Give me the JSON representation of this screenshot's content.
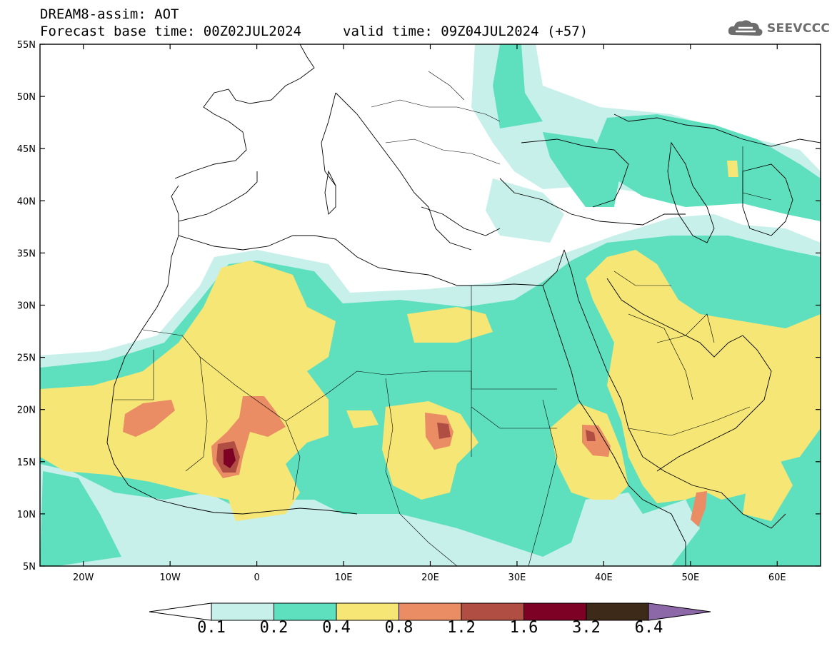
{
  "title": {
    "model": "DREAM8-assim: AOT",
    "base_time": "Forecast base time: 00Z02JUL2024",
    "valid_time": "valid time: 09Z04JUL2024 (+57)"
  },
  "logo": {
    "text": "SEEVCCC",
    "icon": "cloud-icon"
  },
  "map": {
    "lon_range": [
      -25,
      65
    ],
    "lat_range": [
      5,
      55
    ],
    "lat_ticks": [
      "55N",
      "50N",
      "45N",
      "40N",
      "35N",
      "30N",
      "25N",
      "20N",
      "15N",
      "10N",
      "5N"
    ],
    "lon_ticks": [
      "20W",
      "10W",
      "0",
      "10E",
      "20E",
      "30E",
      "40E",
      "50E",
      "60E"
    ]
  },
  "colorbar": {
    "labels": [
      "0.1",
      "0.2",
      "0.4",
      "0.8",
      "1.2",
      "1.6",
      "3.2",
      "6.4"
    ],
    "colors": [
      "#c8f0eb",
      "#5ee0bf",
      "#f5e676",
      "#ea8c64",
      "#b04e43",
      "#7d0025",
      "#3d2a18",
      "#8c68a8"
    ],
    "under_color": "#ffffff"
  }
}
